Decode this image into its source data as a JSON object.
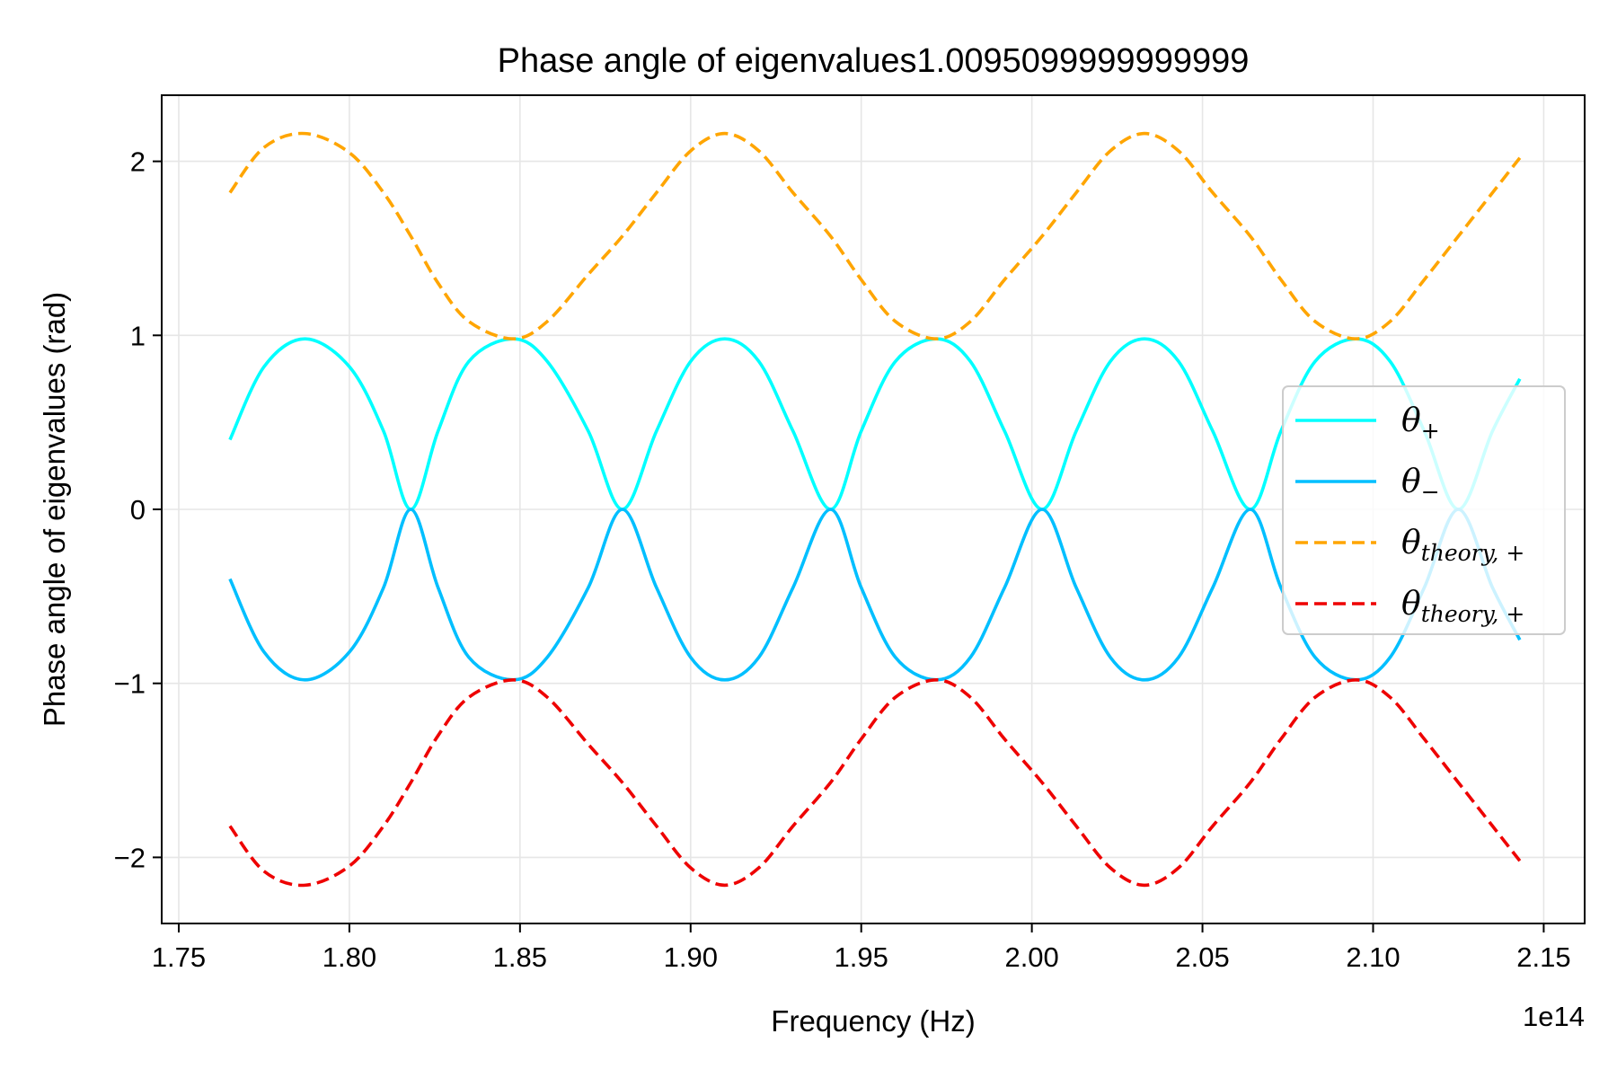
{
  "chart_data": {
    "type": "line",
    "title": "Phase angle of eigenvalues1.0095099999999999",
    "xlabel": "Frequency (Hz)",
    "ylabel": "Phase angle of eigenvalues (rad)",
    "x_offset_label": "1e14",
    "x_scale": 100000000000000.0,
    "xlim": [
      1.745,
      2.162
    ],
    "ylim": [
      -2.38,
      2.38
    ],
    "xticks": [
      1.75,
      1.8,
      1.85,
      1.9,
      1.95,
      2.0,
      2.05,
      2.1,
      2.15
    ],
    "xtick_labels": [
      "1.75",
      "1.80",
      "1.85",
      "1.90",
      "1.95",
      "2.00",
      "2.05",
      "2.10",
      "2.15"
    ],
    "yticks": [
      2,
      1,
      0,
      -1,
      -2
    ],
    "ytick_labels": [
      "2",
      "1",
      "0",
      "−1",
      "−2"
    ],
    "grid": true,
    "legend_position": "center-right",
    "x": [
      1.765,
      1.775,
      1.787,
      1.8,
      1.81,
      1.818,
      1.826,
      1.835,
      1.848,
      1.858,
      1.87,
      1.88,
      1.89,
      1.9,
      1.91,
      1.92,
      1.93,
      1.941,
      1.95,
      1.96,
      1.972,
      1.982,
      1.992,
      2.003,
      2.013,
      2.023,
      2.033,
      2.043,
      2.053,
      2.064,
      2.073,
      2.083,
      2.095,
      2.105,
      2.115,
      2.125,
      2.135,
      2.143
    ],
    "series": [
      {
        "name": "θ+",
        "color": "#00ffff",
        "style": "solid",
        "values": [
          0.4,
          0.82,
          0.98,
          0.82,
          0.45,
          0.0,
          0.45,
          0.85,
          0.98,
          0.85,
          0.45,
          0.0,
          0.45,
          0.85,
          0.98,
          0.85,
          0.45,
          0.0,
          0.45,
          0.85,
          0.98,
          0.85,
          0.45,
          0.0,
          0.45,
          0.85,
          0.98,
          0.85,
          0.45,
          0.0,
          0.45,
          0.85,
          0.98,
          0.85,
          0.45,
          0.0,
          0.45,
          0.75
        ]
      },
      {
        "name": "θ−",
        "color": "#00bfff",
        "style": "solid",
        "values": [
          -0.4,
          -0.82,
          -0.98,
          -0.82,
          -0.45,
          0.0,
          -0.45,
          -0.85,
          -0.98,
          -0.85,
          -0.45,
          0.0,
          -0.45,
          -0.85,
          -0.98,
          -0.85,
          -0.45,
          0.0,
          -0.45,
          -0.85,
          -0.98,
          -0.85,
          -0.45,
          0.0,
          -0.45,
          -0.85,
          -0.98,
          -0.85,
          -0.45,
          0.0,
          -0.45,
          -0.85,
          -0.98,
          -0.85,
          -0.45,
          0.0,
          -0.45,
          -0.75
        ]
      },
      {
        "name": "θtheory, +",
        "color": "#ffa500",
        "style": "dashed",
        "values": [
          1.82,
          2.08,
          2.16,
          2.05,
          1.82,
          1.57,
          1.3,
          1.08,
          0.98,
          1.08,
          1.35,
          1.57,
          1.82,
          2.06,
          2.16,
          2.06,
          1.82,
          1.57,
          1.32,
          1.08,
          0.98,
          1.08,
          1.32,
          1.57,
          1.82,
          2.06,
          2.16,
          2.06,
          1.82,
          1.57,
          1.32,
          1.08,
          0.98,
          1.08,
          1.32,
          1.57,
          1.82,
          2.02
        ]
      },
      {
        "name": "θtheory, +",
        "color": "#ee0000",
        "style": "dashed",
        "values": [
          -1.82,
          -2.08,
          -2.16,
          -2.05,
          -1.82,
          -1.57,
          -1.3,
          -1.08,
          -0.98,
          -1.08,
          -1.35,
          -1.57,
          -1.82,
          -2.06,
          -2.16,
          -2.06,
          -1.82,
          -1.57,
          -1.32,
          -1.08,
          -0.98,
          -1.08,
          -1.32,
          -1.57,
          -1.82,
          -2.06,
          -2.16,
          -2.06,
          -1.82,
          -1.57,
          -1.32,
          -1.08,
          -0.98,
          -1.08,
          -1.32,
          -1.57,
          -1.82,
          -2.02
        ]
      }
    ],
    "legend": [
      {
        "symbol": "θ",
        "sub": "+",
        "color": "#00ffff",
        "style": "solid"
      },
      {
        "symbol": "θ",
        "sub": "−",
        "color": "#00bfff",
        "style": "solid"
      },
      {
        "symbol": "θ",
        "sub": "theory, +",
        "color": "#ffa500",
        "style": "dashed"
      },
      {
        "symbol": "θ",
        "sub": "theory, +",
        "color": "#ee0000",
        "style": "dashed"
      }
    ]
  }
}
